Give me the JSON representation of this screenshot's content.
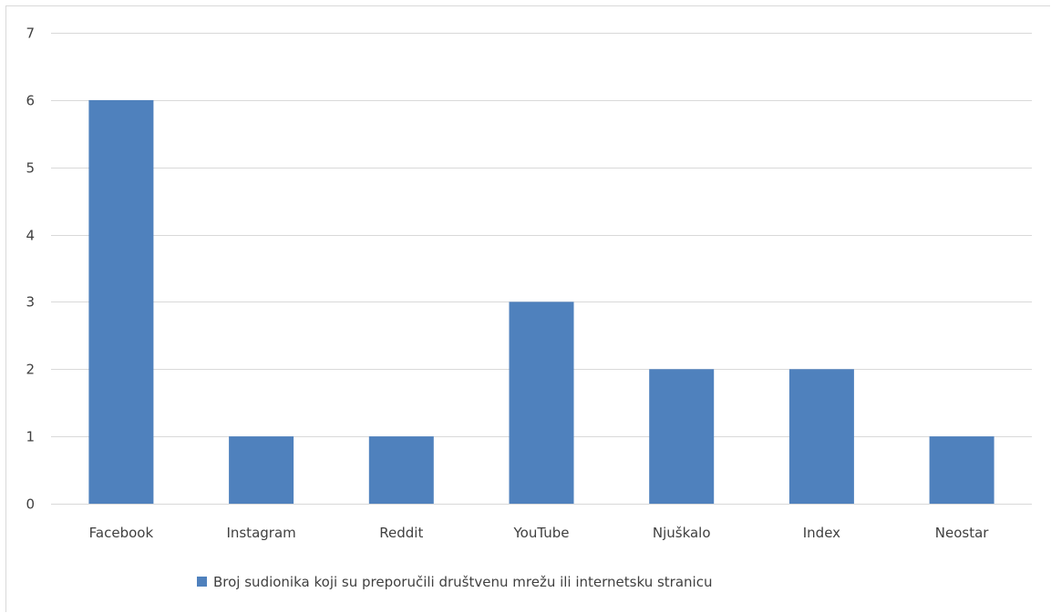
{
  "chart_data": {
    "type": "bar",
    "categories": [
      "Facebook",
      "Instagram",
      "Reddit",
      "YouTube",
      "Njuškalo",
      "Index",
      "Neostar"
    ],
    "series": [
      {
        "name": "Broj sudionika koji su preporučili društvenu mrežu ili internetsku stranicu",
        "values": [
          6,
          1,
          1,
          3,
          2,
          2,
          1
        ],
        "color": "#4f81bd"
      }
    ],
    "yticks": [
      0,
      1,
      2,
      3,
      4,
      5,
      6,
      7
    ],
    "ylim": [
      0,
      7
    ],
    "grid": true,
    "legend_position": "bottom",
    "title": "",
    "xlabel": "",
    "ylabel": ""
  }
}
